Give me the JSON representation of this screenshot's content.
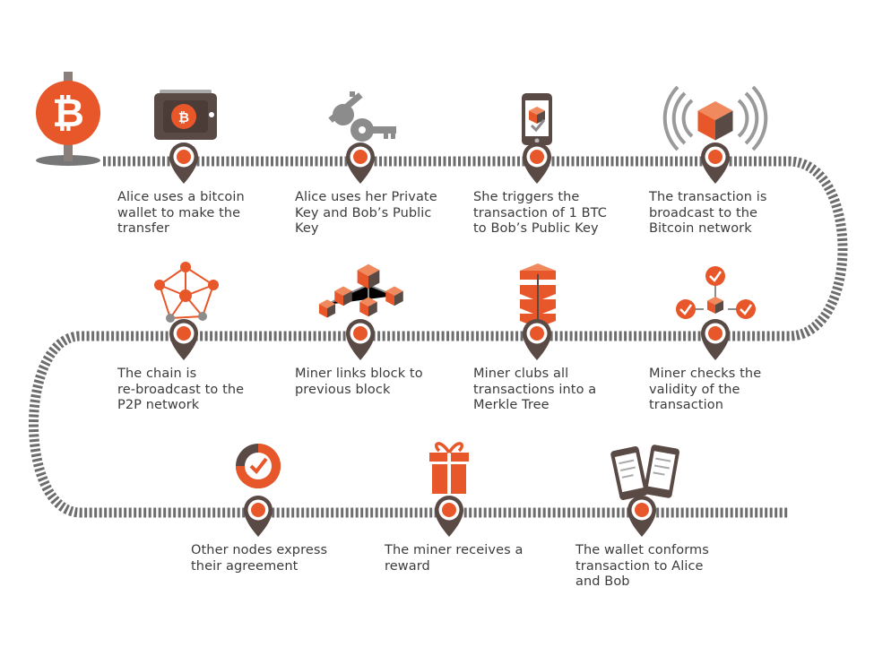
{
  "colors": {
    "accent": "#E8572A",
    "dark": "#5a4a45",
    "grey": "#8c8c8c",
    "track": "#6d6d6d"
  },
  "start_icon": "bitcoin-signpost-icon",
  "steps": [
    {
      "icon": "wallet-icon",
      "lines": [
        "Alice uses a bitcoin",
        "wallet to make the",
        "transfer"
      ]
    },
    {
      "icon": "keys-icon",
      "lines": [
        "Alice uses her Private",
        "Key and Bob’s Public",
        "Key"
      ]
    },
    {
      "icon": "phone-icon",
      "lines": [
        "She triggers the",
        "transaction of 1 BTC",
        "to Bob’s Public Key"
      ]
    },
    {
      "icon": "broadcast-icon",
      "lines": [
        "The transaction is",
        "broadcast to the",
        "Bitcoin network"
      ]
    },
    {
      "icon": "validation-icon",
      "lines": [
        "Miner checks the",
        "validity of the",
        "transaction"
      ]
    },
    {
      "icon": "merkle-tree-icon",
      "lines": [
        "Miner clubs all",
        "transactions into a",
        "Merkle Tree"
      ]
    },
    {
      "icon": "block-chain-icon",
      "lines": [
        "Miner links block to",
        "previous block"
      ]
    },
    {
      "icon": "p2p-network-icon",
      "lines": [
        "The chain is",
        "re-broadcast to the",
        "P2P network"
      ]
    },
    {
      "icon": "agreement-check-icon",
      "lines": [
        "Other nodes express",
        "their agreement"
      ]
    },
    {
      "icon": "gift-icon",
      "lines": [
        "The miner receives a",
        "reward"
      ]
    },
    {
      "icon": "phones-icon",
      "lines": [
        "The wallet conforms",
        "transaction to Alice",
        "and Bob"
      ]
    }
  ]
}
